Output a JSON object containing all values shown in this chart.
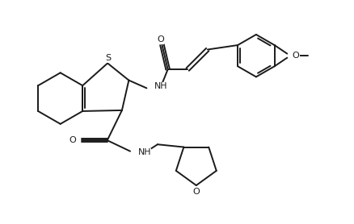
{
  "bg_color": "#ffffff",
  "line_color": "#1a1a1a",
  "line_width": 1.4,
  "fig_width": 4.39,
  "fig_height": 2.78,
  "dpi": 100,
  "xlim": [
    0,
    10
  ],
  "ylim": [
    0,
    6.5
  ]
}
